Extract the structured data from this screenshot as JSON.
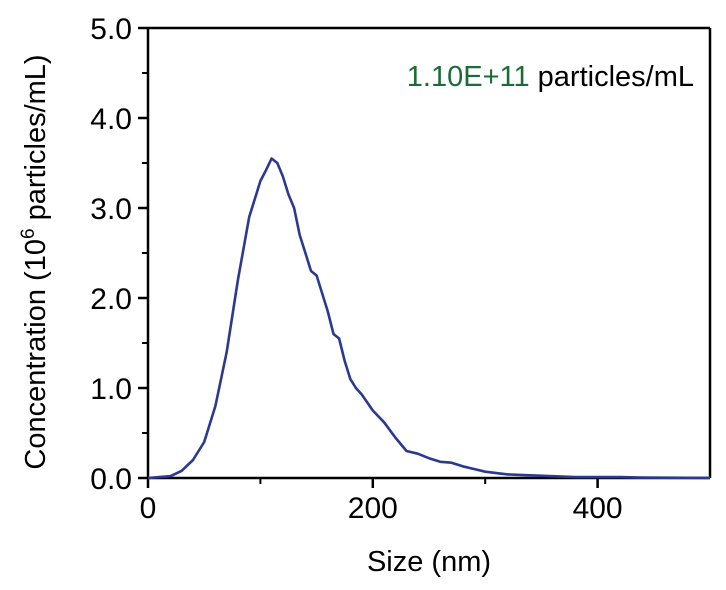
{
  "chart_data": {
    "type": "line",
    "xlabel": "Size (nm)",
    "ylabel_prefix": "Concentration (10",
    "ylabel_sup": "6",
    "ylabel_suffix": " particles/mL)",
    "xlim": [
      0,
      500
    ],
    "ylim": [
      0,
      5.0
    ],
    "x_ticks": [
      0,
      200,
      400
    ],
    "x_tick_labels": [
      "0",
      "200",
      "400"
    ],
    "y_ticks": [
      0,
      1,
      2,
      3,
      4,
      5
    ],
    "y_tick_labels": [
      "0.0",
      "1.0",
      "2.0",
      "3.0",
      "4.0",
      "5.0"
    ],
    "grid": false,
    "annotation": {
      "value": "1.10E+11",
      "unit": " particles/mL",
      "value_color": "#1a6b36"
    },
    "series": [
      {
        "color": "#2b3990",
        "x": [
          0,
          10,
          20,
          30,
          40,
          50,
          60,
          70,
          80,
          90,
          100,
          105,
          110,
          115,
          120,
          125,
          130,
          135,
          140,
          145,
          150,
          155,
          160,
          165,
          170,
          175,
          180,
          185,
          190,
          200,
          210,
          220,
          230,
          240,
          250,
          260,
          270,
          280,
          290,
          300,
          320,
          340,
          360,
          380,
          400,
          420,
          440,
          460,
          480,
          500
        ],
        "y": [
          0,
          0.01,
          0.02,
          0.08,
          0.2,
          0.4,
          0.8,
          1.4,
          2.2,
          2.9,
          3.3,
          3.42,
          3.55,
          3.5,
          3.35,
          3.15,
          3.0,
          2.7,
          2.5,
          2.3,
          2.25,
          2.05,
          1.85,
          1.6,
          1.55,
          1.3,
          1.1,
          1.0,
          0.93,
          0.75,
          0.62,
          0.45,
          0.3,
          0.27,
          0.22,
          0.18,
          0.17,
          0.13,
          0.1,
          0.07,
          0.04,
          0.03,
          0.02,
          0.01,
          0.01,
          0.01,
          0.005,
          0.003,
          0.002,
          0.001
        ]
      }
    ]
  }
}
